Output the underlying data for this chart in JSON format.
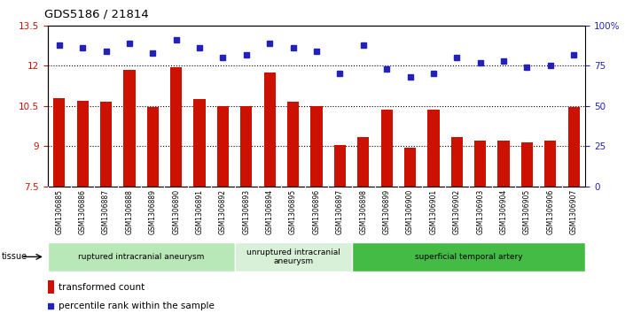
{
  "title": "GDS5186 / 21814",
  "samples": [
    "GSM1306885",
    "GSM1306886",
    "GSM1306887",
    "GSM1306888",
    "GSM1306889",
    "GSM1306890",
    "GSM1306891",
    "GSM1306892",
    "GSM1306893",
    "GSM1306894",
    "GSM1306895",
    "GSM1306896",
    "GSM1306897",
    "GSM1306898",
    "GSM1306899",
    "GSM1306900",
    "GSM1306901",
    "GSM1306902",
    "GSM1306903",
    "GSM1306904",
    "GSM1306905",
    "GSM1306906",
    "GSM1306907"
  ],
  "bar_values": [
    10.8,
    10.7,
    10.65,
    11.85,
    10.45,
    11.95,
    10.75,
    10.5,
    10.5,
    11.75,
    10.65,
    10.5,
    9.05,
    9.35,
    10.35,
    8.95,
    10.35,
    9.35,
    9.2,
    9.2,
    9.15,
    9.2,
    10.45
  ],
  "dot_values_pct": [
    88,
    86,
    84,
    89,
    83,
    91,
    86,
    80,
    82,
    89,
    86,
    84,
    70,
    88,
    73,
    68,
    70,
    80,
    77,
    78,
    74,
    75,
    82
  ],
  "ymin": 7.5,
  "ylim_left": [
    7.5,
    13.5
  ],
  "ylim_right": [
    0,
    100
  ],
  "yticks_left": [
    7.5,
    9.0,
    10.5,
    12.0,
    13.5
  ],
  "ytick_labels_left": [
    "7.5",
    "9",
    "10.5",
    "12",
    "13.5"
  ],
  "yticks_right": [
    0,
    25,
    50,
    75,
    100
  ],
  "ytick_labels_right": [
    "0",
    "25",
    "50",
    "75",
    "100%"
  ],
  "grid_values": [
    9.0,
    10.5,
    12.0
  ],
  "bar_color": "#cc1100",
  "dot_color": "#2222bb",
  "plot_bg_color": "#ffffff",
  "xtick_bg_color": "#d8d8d8",
  "groups": [
    {
      "label": "ruptured intracranial aneurysm",
      "start": 0,
      "end": 8,
      "color": "#b8e8b8"
    },
    {
      "label": "unruptured intracranial\naneurysm",
      "start": 8,
      "end": 13,
      "color": "#d8f0d8"
    },
    {
      "label": "superficial temporal artery",
      "start": 13,
      "end": 23,
      "color": "#44bb44"
    }
  ],
  "tissue_label": "tissue",
  "legend_bar_label": "transformed count",
  "legend_dot_label": "percentile rank within the sample"
}
